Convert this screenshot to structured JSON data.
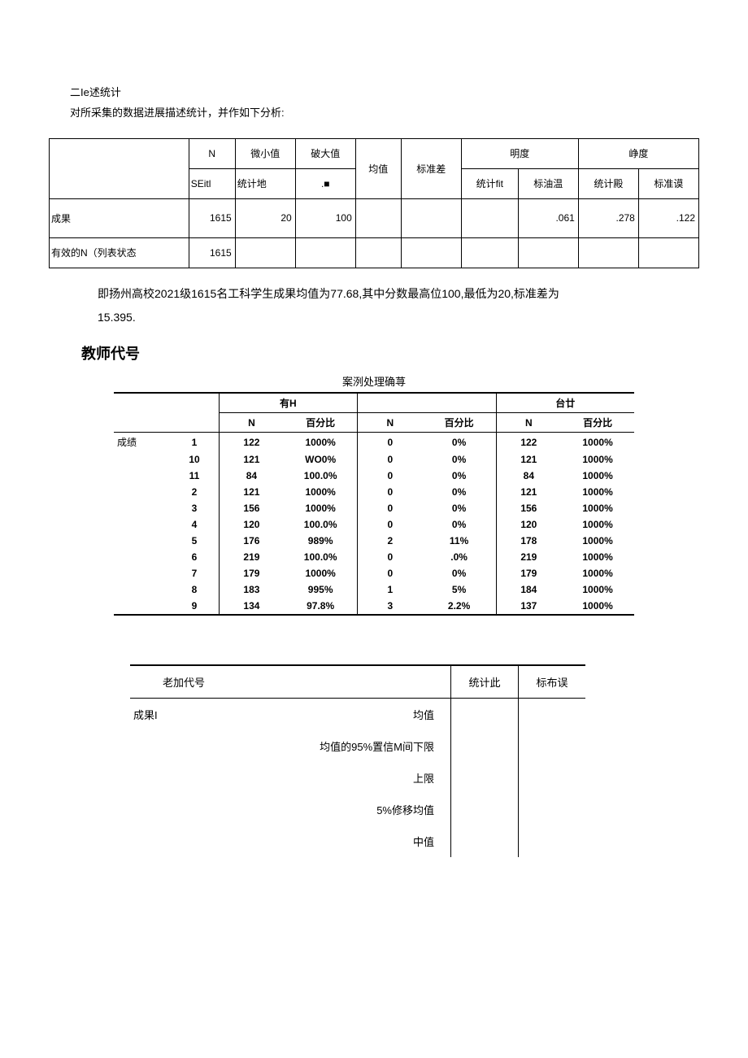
{
  "intro": {
    "line1": "二Ie述统计",
    "line2": "对所采集的数据进展描述统计，并作如下分析:"
  },
  "table1": {
    "headers": {
      "n": "N",
      "min": "微小值",
      "max": "破大值",
      "mean": "均值",
      "std": "标准差",
      "skew": "明度",
      "kurt": "峥度",
      "sub_n": "SEitl",
      "sub_stat1": "统计地",
      "sub_dot": ".■",
      "sub_stat2": "统计fit",
      "sub_se2": "标油温",
      "sub_stat3": "统计殿",
      "sub_se3": "标准谟"
    },
    "rows": [
      {
        "label": "成果",
        "n": "1615",
        "min": "20",
        "max": "100",
        "mean": "",
        "std": "",
        "skew_stat": "",
        "skew_se": ".061",
        "kurt_stat": ".278",
        "kurt_se": ".122"
      },
      {
        "label": "有效的N（列表状态",
        "n": "1615",
        "min": "",
        "max": "",
        "mean": "",
        "std": "",
        "skew_stat": "",
        "skew_se": "",
        "kurt_stat": "",
        "kurt_se": ""
      }
    ]
  },
  "result_text": "即扬州高校2021级1615名工科学生成果均值为77.68,其中分数最高位100,最低为20,标准差为",
  "result_text2": "15.395.",
  "heading": "教师代号",
  "table2": {
    "caption": "案洌处理确荨",
    "groups": {
      "g1": "有H",
      "g2": "",
      "g3": "台廿"
    },
    "subheads": {
      "n": "N",
      "pct": "百分比",
      "pct2": "百分比",
      "pct3": "百分比"
    },
    "rowlabel": "成绩",
    "rows": [
      {
        "code": "1",
        "n1": "122",
        "p1": "1000%",
        "n2": "0",
        "p2": "0%",
        "n3": "122",
        "p3": "1000%"
      },
      {
        "code": "10",
        "n1": "121",
        "p1": "WO0%",
        "n2": "0",
        "p2": "0%",
        "n3": "121",
        "p3": "1000%"
      },
      {
        "code": "11",
        "n1": "84",
        "p1": "100.0%",
        "n2": "0",
        "p2": "0%",
        "n3": "84",
        "p3": "1000%"
      },
      {
        "code": "2",
        "n1": "121",
        "p1": "1000%",
        "n2": "0",
        "p2": "0%",
        "n3": "121",
        "p3": "1000%"
      },
      {
        "code": "3",
        "n1": "156",
        "p1": "1000%",
        "n2": "0",
        "p2": "0%",
        "n3": "156",
        "p3": "1000%"
      },
      {
        "code": "4",
        "n1": "120",
        "p1": "100.0%",
        "n2": "0",
        "p2": "0%",
        "n3": "120",
        "p3": "1000%"
      },
      {
        "code": "5",
        "n1": "176",
        "p1": "989%",
        "n2": "2",
        "p2": "11%",
        "n3": "178",
        "p3": "1000%"
      },
      {
        "code": "6",
        "n1": "219",
        "p1": "100.0%",
        "n2": "0",
        "p2": ".0%",
        "n3": "219",
        "p3": "1000%"
      },
      {
        "code": "7",
        "n1": "179",
        "p1": "1000%",
        "n2": "0",
        "p2": "0%",
        "n3": "179",
        "p3": "1000%"
      },
      {
        "code": "8",
        "n1": "183",
        "p1": "995%",
        "n2": "1",
        "p2": "5%",
        "n3": "184",
        "p3": "1000%"
      },
      {
        "code": "9",
        "n1": "134",
        "p1": "97.8%",
        "n2": "3",
        "p2": "2.2%",
        "n3": "137",
        "p3": "1000%"
      }
    ]
  },
  "table3": {
    "headers": {
      "teacher": "老加代号",
      "stat": "统计此",
      "se": "标布误"
    },
    "rowlabel": "成果I",
    "items": [
      "均值",
      "均值的95%置信M间下限",
      "上限",
      "5%修移均值",
      "中值"
    ]
  }
}
